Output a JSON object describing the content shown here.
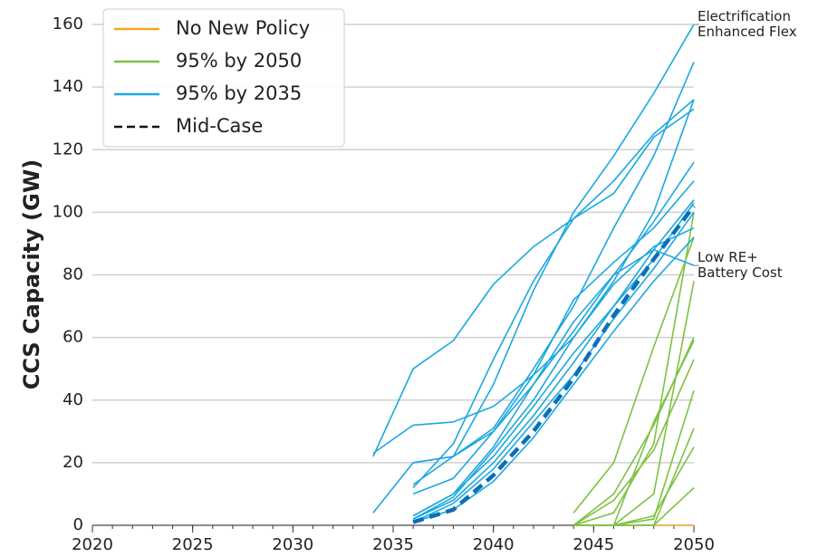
{
  "chart_data": {
    "type": "line",
    "ylabel": "CCS Capacity (GW)",
    "x": [
      2034,
      2036,
      2038,
      2040,
      2042,
      2044,
      2046,
      2048,
      2050
    ],
    "xlim": [
      2020,
      2050
    ],
    "xticks": [
      2020,
      2025,
      2030,
      2035,
      2040,
      2045,
      2050
    ],
    "ylim": [
      0,
      160
    ],
    "yticks": [
      0,
      20,
      40,
      60,
      80,
      100,
      120,
      140,
      160
    ],
    "grid": true,
    "legend": "upper left",
    "series": [
      {
        "name": "No New Policy",
        "color": "#f5a623",
        "dashed": false,
        "lines": [
          [
            null,
            null,
            null,
            null,
            null,
            0,
            0,
            0,
            0
          ]
        ]
      },
      {
        "name": "95% by 2050",
        "color": "#7dc242",
        "dashed": false,
        "lines": [
          [
            null,
            null,
            null,
            null,
            null,
            4,
            20,
            57,
            92
          ],
          [
            null,
            null,
            null,
            null,
            null,
            0,
            10,
            32,
            60
          ],
          [
            null,
            null,
            null,
            null,
            null,
            0,
            4,
            26,
            100
          ],
          [
            null,
            null,
            null,
            null,
            null,
            0,
            8,
            24,
            53
          ],
          [
            null,
            null,
            null,
            null,
            null,
            0,
            0,
            2,
            43
          ],
          [
            null,
            null,
            null,
            null,
            null,
            0,
            0,
            10,
            78
          ],
          [
            null,
            null,
            null,
            null,
            null,
            0,
            0,
            0,
            31
          ],
          [
            null,
            null,
            null,
            null,
            null,
            0,
            0,
            0,
            12
          ],
          [
            null,
            null,
            null,
            null,
            null,
            0,
            0,
            3,
            25
          ],
          [
            null,
            null,
            null,
            null,
            null,
            0,
            0,
            33,
            59
          ]
        ]
      },
      {
        "name": "95% by 2035",
        "color": "#1ba8e0",
        "dashed": false,
        "lines": [
          [
            null,
            13,
            22,
            45,
            75,
            100,
            118,
            138,
            160
          ],
          [
            null,
            20,
            22,
            31,
            50,
            70,
            95,
            118,
            148
          ],
          [
            23,
            32,
            33,
            38,
            48,
            60,
            78,
            100,
            136
          ],
          [
            22,
            50,
            59,
            77,
            89,
            98,
            106,
            124,
            133
          ],
          [
            4,
            20,
            22,
            30,
            45,
            62,
            80,
            97,
            116
          ],
          [
            null,
            12,
            26,
            53,
            78,
            98,
            110,
            125,
            136
          ],
          [
            null,
            3,
            10,
            22,
            38,
            55,
            70,
            85,
            103
          ],
          [
            null,
            2,
            8,
            20,
            35,
            52,
            70,
            88,
            104
          ],
          [
            null,
            1,
            7,
            18,
            33,
            48,
            66,
            82,
            100
          ],
          [
            null,
            2,
            9,
            24,
            40,
            60,
            77,
            89,
            95
          ],
          [
            null,
            3,
            10,
            25,
            45,
            65,
            80,
            88,
            83
          ],
          [
            null,
            1,
            5,
            14,
            28,
            45,
            62,
            78,
            92
          ],
          [
            null,
            10,
            15,
            30,
            48,
            72,
            84,
            95,
            110
          ]
        ]
      },
      {
        "name": "Mid-Case",
        "color": "#0b6fb8",
        "dashed": true,
        "lines": [
          [
            null,
            1,
            5,
            16,
            30,
            47,
            67,
            85,
            102
          ]
        ]
      }
    ],
    "annotations": [
      {
        "lines": [
          "Electrification",
          "Enhanced Flex"
        ],
        "y": 160
      },
      {
        "lines": [
          "Low RE+",
          "Battery Cost"
        ],
        "y": 83
      }
    ]
  }
}
